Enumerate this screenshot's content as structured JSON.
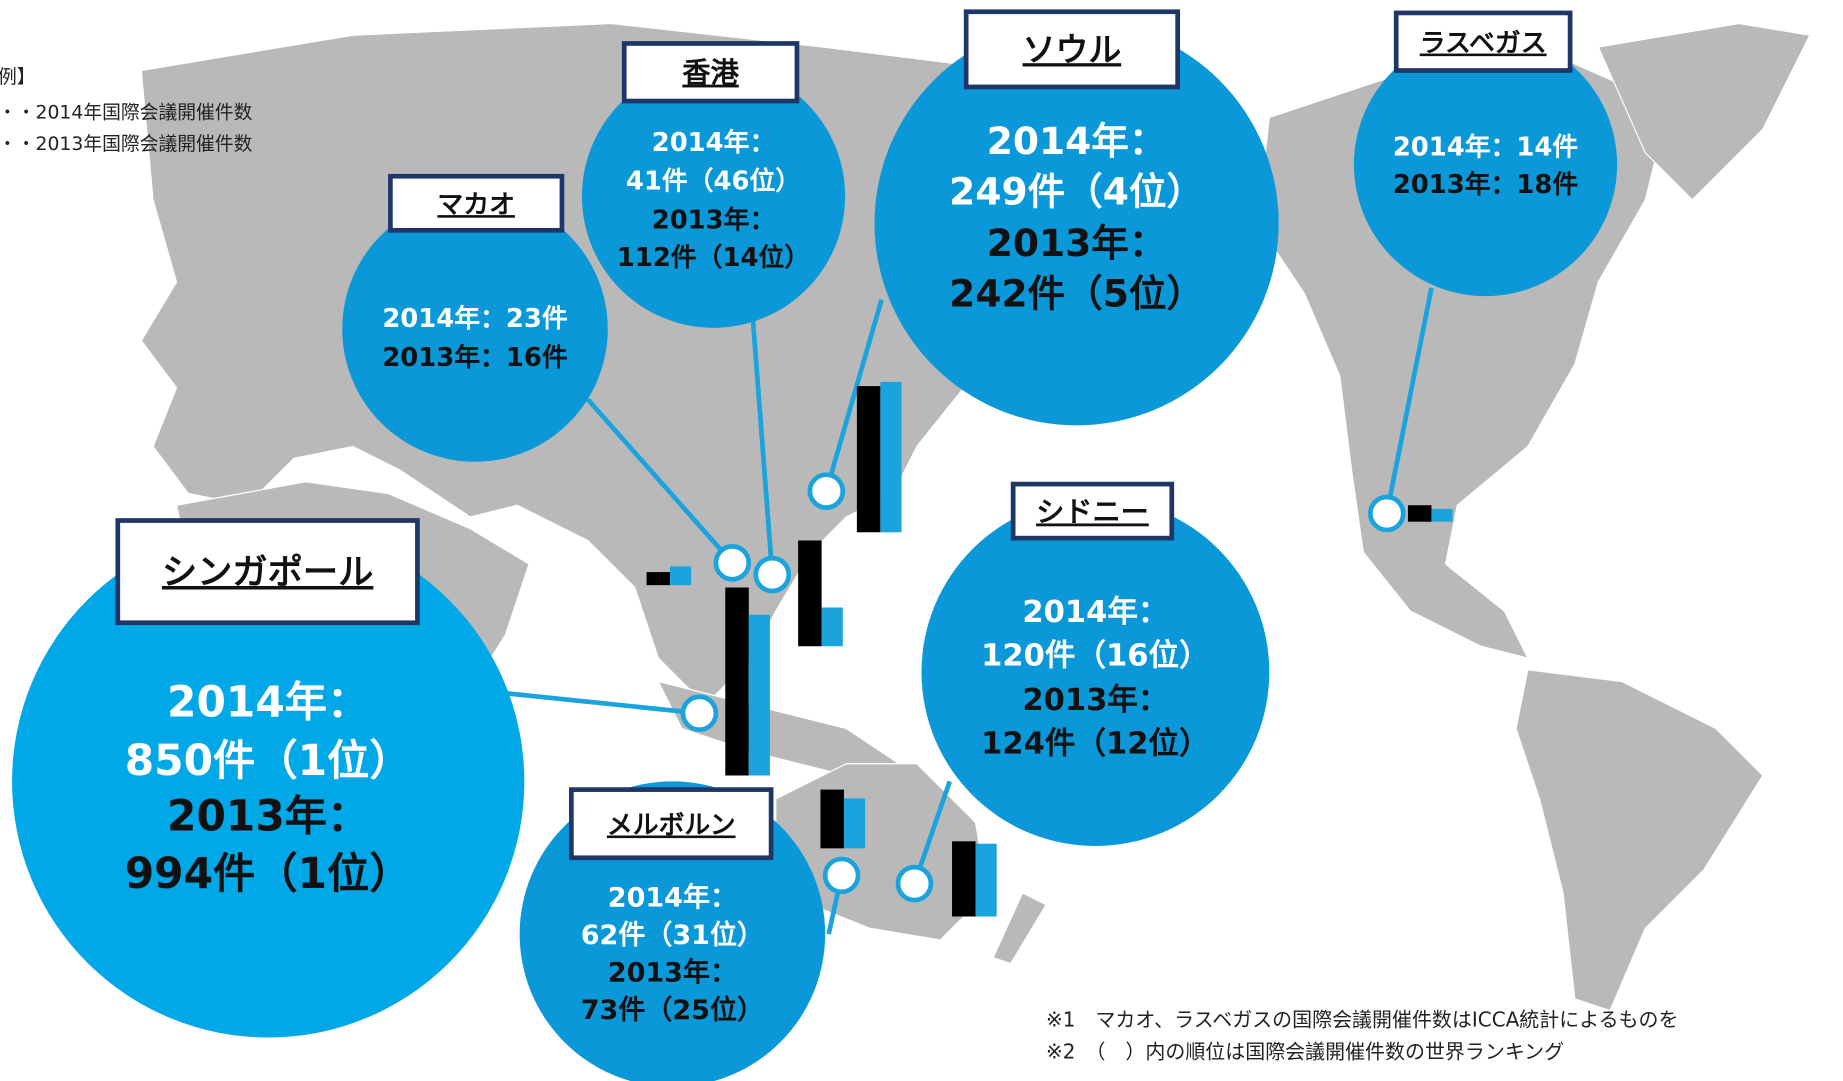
{
  "legend": {
    "heading": "例】",
    "items": [
      "・・2014年国際会議開催件数",
      "・・2013年国際会議開催件数"
    ]
  },
  "cities": [
    {
      "name": "シンガポール",
      "lines": [
        "2014年：",
        "850件（1位）",
        "2013年：",
        "994件（1位）"
      ],
      "values": [
        850,
        994
      ]
    },
    {
      "name": "メルボルン",
      "lines": [
        "2014年：",
        "62件（31位）",
        "2013年：",
        "73件（25位）"
      ],
      "values": [
        62,
        73
      ]
    },
    {
      "name": "マカオ",
      "lines": [
        "2014年：23件",
        "2013年：16件"
      ],
      "values": [
        23,
        16
      ]
    },
    {
      "name": "香港",
      "lines": [
        "2014年：",
        "41件（46位）",
        "2013年：",
        "112件（14位）"
      ],
      "values": [
        41,
        112
      ]
    },
    {
      "name": "ソウル",
      "lines": [
        "2014年：",
        "249件（4位）",
        "2013年：",
        "242件（5位）"
      ],
      "values": [
        249,
        242
      ]
    },
    {
      "name": "シドニー",
      "lines": [
        "2014年：",
        "120件（16位）",
        "2013年：",
        "124件（12位）"
      ],
      "values": [
        120,
        124
      ]
    },
    {
      "name": "ラスベガス",
      "lines": [
        "2014年：14件",
        "2013年：18件"
      ],
      "values": [
        14,
        18
      ]
    }
  ],
  "footnotes": [
    "※1　マカオ、ラスベガスの国際会議開催件数はICCA統計によるものを",
    "※2　（　）内の順位は国際会議開催件数の世界ランキング"
  ]
}
